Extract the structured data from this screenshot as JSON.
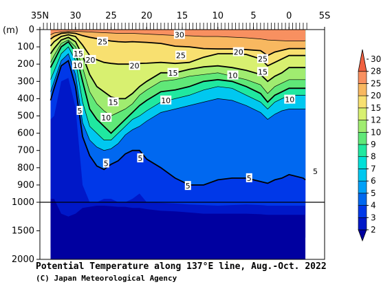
{
  "chart_data": {
    "type": "heatmap",
    "title": "Potential Temperature along 137°E line, Aug.-Oct. 2022",
    "credit": "(C) Japan Meteorological Agency",
    "y_unit": "(m)",
    "x_ticks": [
      {
        "value": 35,
        "label": "35N"
      },
      {
        "value": 30,
        "label": "30"
      },
      {
        "value": 25,
        "label": "25"
      },
      {
        "value": 20,
        "label": "20"
      },
      {
        "value": 15,
        "label": "15"
      },
      {
        "value": 10,
        "label": "10"
      },
      {
        "value": 5,
        "label": "5"
      },
      {
        "value": 0,
        "label": "0"
      },
      {
        "value": -5,
        "label": "5S"
      }
    ],
    "y_ticks_upper": [
      0,
      100,
      200,
      300,
      400,
      500,
      600,
      700,
      800,
      900,
      1000
    ],
    "y_ticks_lower": [
      1500,
      2000
    ],
    "xlim": [
      35,
      -5
    ],
    "ylim": [
      0,
      2000
    ],
    "y_scale_break": 1000,
    "colorbar": {
      "levels": [
        "2",
        "3",
        "4",
        "5",
        "6",
        "7",
        "8",
        "9",
        "10",
        "12",
        "15",
        "20",
        "25",
        "28",
        "30"
      ],
      "colors": [
        "#0000a0",
        "#0018c8",
        "#0038e8",
        "#0068f0",
        "#00a0f8",
        "#00c8f0",
        "#00e0d8",
        "#20e8a0",
        "#60e878",
        "#a0ec70",
        "#d8f070",
        "#f8e070",
        "#f8b860",
        "#f89060",
        "#f06040"
      ]
    },
    "contour_labels": [
      {
        "lat": 29.6,
        "depth": 140,
        "label": "15"
      },
      {
        "lat": 29.7,
        "depth": 207,
        "label": "10"
      },
      {
        "lat": 29.4,
        "depth": 470,
        "label": "5"
      },
      {
        "lat": 26.2,
        "depth": 70,
        "label": "25"
      },
      {
        "lat": 27.9,
        "depth": 175,
        "label": "20"
      },
      {
        "lat": 21.7,
        "depth": 210,
        "label": "20"
      },
      {
        "lat": 24.7,
        "depth": 420,
        "label": "15"
      },
      {
        "lat": 25.7,
        "depth": 510,
        "label": "10"
      },
      {
        "lat": 25.7,
        "depth": 775,
        "label": "5"
      },
      {
        "lat": 20.9,
        "depth": 745,
        "label": "5"
      },
      {
        "lat": 15.4,
        "depth": 30,
        "label": "30"
      },
      {
        "lat": 15.2,
        "depth": 150,
        "label": "25"
      },
      {
        "lat": 16.3,
        "depth": 250,
        "label": "15"
      },
      {
        "lat": 17.3,
        "depth": 410,
        "label": "10"
      },
      {
        "lat": 14.2,
        "depth": 905,
        "label": "5"
      },
      {
        "lat": 7.1,
        "depth": 130,
        "label": "20"
      },
      {
        "lat": 7.9,
        "depth": 265,
        "label": "10"
      },
      {
        "lat": 3.7,
        "depth": 170,
        "label": "25"
      },
      {
        "lat": 3.7,
        "depth": 245,
        "label": "15"
      },
      {
        "lat": 5.6,
        "depth": 860,
        "label": "5"
      },
      {
        "lat": -0.1,
        "depth": 405,
        "label": "10"
      },
      {
        "lat": -3.7,
        "depth": 820,
        "label": "5"
      }
    ]
  }
}
